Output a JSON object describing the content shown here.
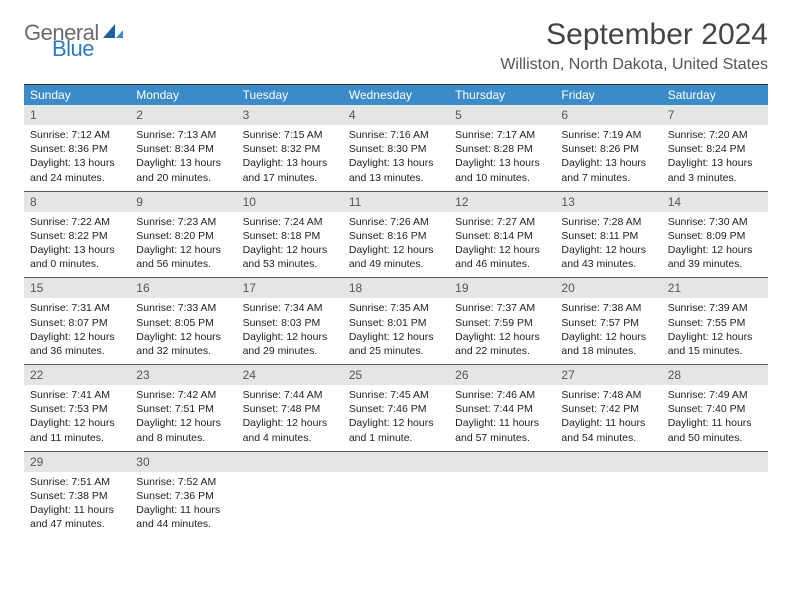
{
  "logo": {
    "text1": "General",
    "text2": "Blue"
  },
  "title": "September 2024",
  "subtitle": "Williston, North Dakota, United States",
  "colors": {
    "header_bg": "#3b8bc9",
    "header_text": "#ffffff",
    "daybar_bg": "#e5e5e5",
    "daybar_text": "#555555",
    "body_text": "#222222",
    "title_text": "#444444",
    "logo_gray": "#6b6b6b",
    "logo_blue": "#2f7ac0",
    "rule": "#5a5a5a"
  },
  "daysOfWeek": [
    "Sunday",
    "Monday",
    "Tuesday",
    "Wednesday",
    "Thursday",
    "Friday",
    "Saturday"
  ],
  "weeks": [
    [
      {
        "n": "1",
        "sunrise": "7:12 AM",
        "sunset": "8:36 PM",
        "dlh": "13",
        "dlm": "24"
      },
      {
        "n": "2",
        "sunrise": "7:13 AM",
        "sunset": "8:34 PM",
        "dlh": "13",
        "dlm": "20"
      },
      {
        "n": "3",
        "sunrise": "7:15 AM",
        "sunset": "8:32 PM",
        "dlh": "13",
        "dlm": "17"
      },
      {
        "n": "4",
        "sunrise": "7:16 AM",
        "sunset": "8:30 PM",
        "dlh": "13",
        "dlm": "13"
      },
      {
        "n": "5",
        "sunrise": "7:17 AM",
        "sunset": "8:28 PM",
        "dlh": "13",
        "dlm": "10"
      },
      {
        "n": "6",
        "sunrise": "7:19 AM",
        "sunset": "8:26 PM",
        "dlh": "13",
        "dlm": "7"
      },
      {
        "n": "7",
        "sunrise": "7:20 AM",
        "sunset": "8:24 PM",
        "dlh": "13",
        "dlm": "3"
      }
    ],
    [
      {
        "n": "8",
        "sunrise": "7:22 AM",
        "sunset": "8:22 PM",
        "dlh": "13",
        "dlm": "0"
      },
      {
        "n": "9",
        "sunrise": "7:23 AM",
        "sunset": "8:20 PM",
        "dlh": "12",
        "dlm": "56"
      },
      {
        "n": "10",
        "sunrise": "7:24 AM",
        "sunset": "8:18 PM",
        "dlh": "12",
        "dlm": "53"
      },
      {
        "n": "11",
        "sunrise": "7:26 AM",
        "sunset": "8:16 PM",
        "dlh": "12",
        "dlm": "49"
      },
      {
        "n": "12",
        "sunrise": "7:27 AM",
        "sunset": "8:14 PM",
        "dlh": "12",
        "dlm": "46"
      },
      {
        "n": "13",
        "sunrise": "7:28 AM",
        "sunset": "8:11 PM",
        "dlh": "12",
        "dlm": "43"
      },
      {
        "n": "14",
        "sunrise": "7:30 AM",
        "sunset": "8:09 PM",
        "dlh": "12",
        "dlm": "39"
      }
    ],
    [
      {
        "n": "15",
        "sunrise": "7:31 AM",
        "sunset": "8:07 PM",
        "dlh": "12",
        "dlm": "36"
      },
      {
        "n": "16",
        "sunrise": "7:33 AM",
        "sunset": "8:05 PM",
        "dlh": "12",
        "dlm": "32"
      },
      {
        "n": "17",
        "sunrise": "7:34 AM",
        "sunset": "8:03 PM",
        "dlh": "12",
        "dlm": "29"
      },
      {
        "n": "18",
        "sunrise": "7:35 AM",
        "sunset": "8:01 PM",
        "dlh": "12",
        "dlm": "25"
      },
      {
        "n": "19",
        "sunrise": "7:37 AM",
        "sunset": "7:59 PM",
        "dlh": "12",
        "dlm": "22"
      },
      {
        "n": "20",
        "sunrise": "7:38 AM",
        "sunset": "7:57 PM",
        "dlh": "12",
        "dlm": "18"
      },
      {
        "n": "21",
        "sunrise": "7:39 AM",
        "sunset": "7:55 PM",
        "dlh": "12",
        "dlm": "15"
      }
    ],
    [
      {
        "n": "22",
        "sunrise": "7:41 AM",
        "sunset": "7:53 PM",
        "dlh": "12",
        "dlm": "11"
      },
      {
        "n": "23",
        "sunrise": "7:42 AM",
        "sunset": "7:51 PM",
        "dlh": "12",
        "dlm": "8"
      },
      {
        "n": "24",
        "sunrise": "7:44 AM",
        "sunset": "7:48 PM",
        "dlh": "12",
        "dlm": "4"
      },
      {
        "n": "25",
        "sunrise": "7:45 AM",
        "sunset": "7:46 PM",
        "dlh": "12",
        "dlm": "1",
        "singularMin": true
      },
      {
        "n": "26",
        "sunrise": "7:46 AM",
        "sunset": "7:44 PM",
        "dlh": "11",
        "dlm": "57"
      },
      {
        "n": "27",
        "sunrise": "7:48 AM",
        "sunset": "7:42 PM",
        "dlh": "11",
        "dlm": "54"
      },
      {
        "n": "28",
        "sunrise": "7:49 AM",
        "sunset": "7:40 PM",
        "dlh": "11",
        "dlm": "50"
      }
    ],
    [
      {
        "n": "29",
        "sunrise": "7:51 AM",
        "sunset": "7:38 PM",
        "dlh": "11",
        "dlm": "47"
      },
      {
        "n": "30",
        "sunrise": "7:52 AM",
        "sunset": "7:36 PM",
        "dlh": "11",
        "dlm": "44"
      },
      null,
      null,
      null,
      null,
      null
    ]
  ]
}
